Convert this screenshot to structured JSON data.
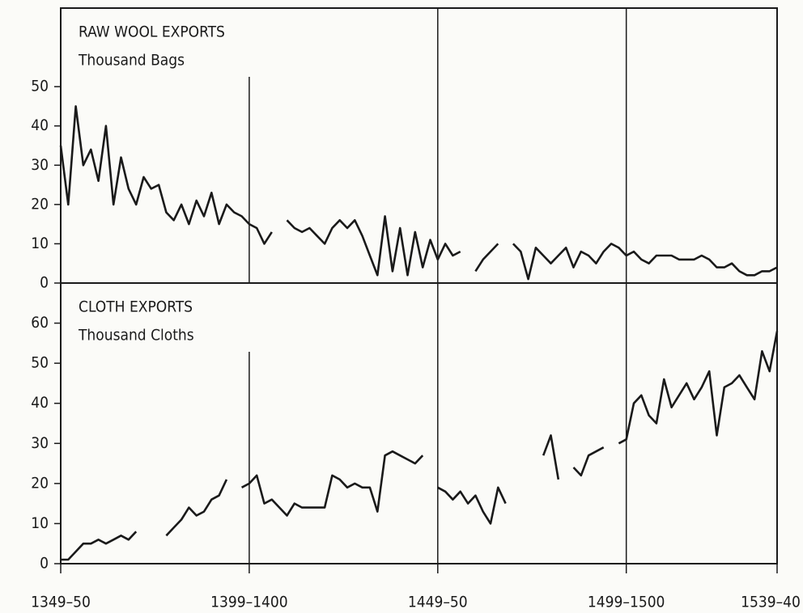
{
  "chart_data": [
    {
      "type": "line",
      "title": "RAW WOOL EXPORTS",
      "subtitle": "Thousand Bags",
      "x": [
        1349,
        1351,
        1353,
        1355,
        1357,
        1359,
        1361,
        1363,
        1365,
        1367,
        1369,
        1371,
        1373,
        1375,
        1377,
        1379,
        1381,
        1383,
        1385,
        1387,
        1389,
        1391,
        1393,
        1395,
        1397,
        1399,
        1401,
        1403,
        1405,
        1407,
        1409,
        1411,
        1413,
        1415,
        1417,
        1419,
        1421,
        1423,
        1425,
        1427,
        1429,
        1431,
        1433,
        1435,
        1437,
        1439,
        1441,
        1443,
        1445,
        1447,
        1449,
        1451,
        1453,
        1455,
        1457,
        1459,
        1461,
        1463,
        1465,
        1467,
        1469,
        1471,
        1473,
        1475,
        1477,
        1479,
        1481,
        1483,
        1485,
        1487,
        1489,
        1491,
        1493,
        1495,
        1497,
        1499,
        1501,
        1503,
        1505,
        1507,
        1509,
        1511,
        1513,
        1515,
        1517,
        1519,
        1521,
        1523,
        1525,
        1527,
        1529,
        1531,
        1533,
        1535,
        1537,
        1539
      ],
      "series": [
        {
          "color": "#1a1a1a",
          "values": [
            35,
            20,
            45,
            30,
            34,
            26,
            40,
            20,
            32,
            24,
            20,
            27,
            24,
            25,
            18,
            16,
            20,
            15,
            21,
            17,
            23,
            15,
            20,
            18,
            17,
            15,
            14,
            10,
            13,
            null,
            16,
            14,
            13,
            14,
            12,
            10,
            14,
            16,
            14,
            16,
            12,
            7,
            2,
            17,
            3,
            14,
            2,
            13,
            4,
            11,
            6,
            10,
            7,
            8,
            null,
            3,
            6,
            8,
            10,
            null,
            10,
            8,
            1,
            9,
            7,
            5,
            7,
            9,
            4,
            8,
            7,
            5,
            8,
            10,
            9,
            7,
            8,
            6,
            5,
            7,
            7,
            7,
            6,
            6,
            6,
            7,
            6,
            4,
            4,
            5,
            3,
            2,
            2,
            3,
            3,
            4
          ]
        }
      ],
      "xlim": [
        1349,
        1539
      ],
      "ylim": [
        0,
        70
      ],
      "yticks": [
        0,
        10,
        20,
        30,
        40,
        50
      ]
    },
    {
      "type": "line",
      "title": "CLOTH EXPORTS",
      "subtitle": "Thousand Cloths",
      "x": [
        1349,
        1351,
        1353,
        1355,
        1357,
        1359,
        1361,
        1363,
        1365,
        1367,
        1369,
        1371,
        1373,
        1375,
        1377,
        1379,
        1381,
        1383,
        1385,
        1387,
        1389,
        1391,
        1393,
        1395,
        1397,
        1399,
        1401,
        1403,
        1405,
        1407,
        1409,
        1411,
        1413,
        1415,
        1417,
        1419,
        1421,
        1423,
        1425,
        1427,
        1429,
        1431,
        1433,
        1435,
        1437,
        1439,
        1441,
        1443,
        1445,
        1447,
        1449,
        1451,
        1453,
        1455,
        1457,
        1459,
        1461,
        1463,
        1465,
        1467,
        1469,
        1471,
        1473,
        1475,
        1477,
        1479,
        1481,
        1483,
        1485,
        1487,
        1489,
        1491,
        1493,
        1495,
        1497,
        1499,
        1501,
        1503,
        1505,
        1507,
        1509,
        1511,
        1513,
        1515,
        1517,
        1519,
        1521,
        1523,
        1525,
        1527,
        1529,
        1531,
        1533,
        1535,
        1537,
        1539
      ],
      "series": [
        {
          "color": "#1a1a1a",
          "values": [
            1,
            1,
            3,
            5,
            5,
            6,
            5,
            6,
            7,
            6,
            8,
            null,
            null,
            null,
            7,
            9,
            11,
            14,
            12,
            13,
            16,
            17,
            21,
            null,
            19,
            20,
            22,
            15,
            16,
            14,
            12,
            15,
            14,
            14,
            14,
            14,
            22,
            21,
            19,
            20,
            19,
            19,
            13,
            27,
            28,
            27,
            26,
            25,
            27,
            null,
            19,
            18,
            16,
            18,
            15,
            17,
            13,
            10,
            19,
            15,
            null,
            null,
            null,
            null,
            27,
            32,
            21,
            null,
            24,
            22,
            27,
            28,
            29,
            null,
            30,
            31,
            40,
            42,
            37,
            35,
            46,
            39,
            42,
            45,
            41,
            44,
            48,
            32,
            44,
            45,
            47,
            44,
            41,
            53,
            48,
            58
          ]
        }
      ],
      "xlim": [
        1349,
        1539
      ],
      "ylim": [
        0,
        70
      ],
      "yticks": [
        0,
        10,
        20,
        30,
        40,
        50,
        60
      ],
      "xticks": [
        {
          "value": 1349,
          "label": "1349–50"
        },
        {
          "value": 1399,
          "label": "1399–1400"
        },
        {
          "value": 1449,
          "label": "1449–50"
        },
        {
          "value": 1499,
          "label": "1499–1500"
        },
        {
          "value": 1539,
          "label": "1539–40"
        }
      ]
    }
  ]
}
